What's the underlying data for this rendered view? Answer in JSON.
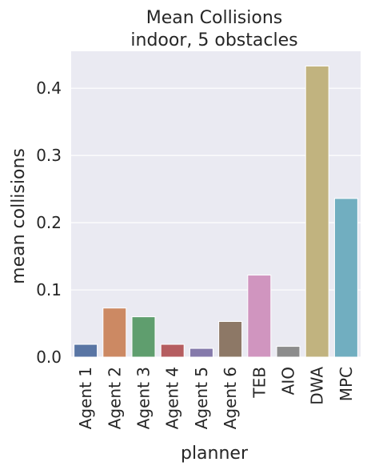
{
  "chart_data": {
    "type": "bar",
    "title": [
      "Mean Collisions",
      "indoor, 5 obstacles"
    ],
    "xlabel": "planner",
    "ylabel": "mean collisions",
    "categories": [
      "Agent 1",
      "Agent 2",
      "Agent 3",
      "Agent 4",
      "Agent 5",
      "Agent 6",
      "TEB",
      "AIO",
      "DWA",
      "MPC"
    ],
    "values": [
      0.019,
      0.073,
      0.06,
      0.019,
      0.013,
      0.053,
      0.122,
      0.016,
      0.433,
      0.236
    ],
    "colors": [
      "#5975a4",
      "#cc8963",
      "#5f9e6e",
      "#b55d60",
      "#857aab",
      "#8d7866",
      "#d095bf",
      "#8c8c8c",
      "#c1b37f",
      "#71aec0"
    ],
    "ylim": [
      0,
      0.455
    ],
    "yticks": [
      0.0,
      0.1,
      0.2,
      0.3,
      0.4
    ],
    "ytick_labels": [
      "0.0",
      "0.1",
      "0.2",
      "0.3",
      "0.4"
    ],
    "grid": true,
    "background": "#eaeaf2"
  }
}
